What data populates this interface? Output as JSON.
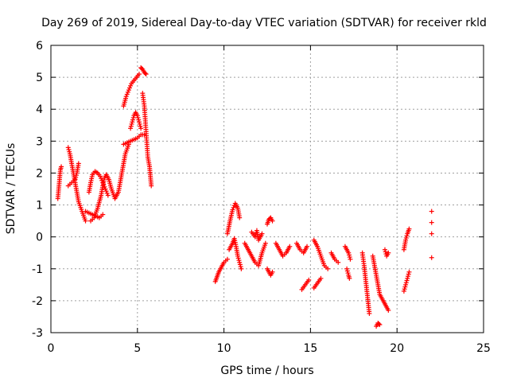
{
  "chart_data": {
    "type": "scatter",
    "title": "Day 269 of 2019, Sidereal Day-to-day VTEC variation (SDTVAR) for receiver rkld",
    "xlabel": "GPS time / hours",
    "ylabel": "SDTVAR / TECUs",
    "xlim": [
      0,
      25
    ],
    "ylim": [
      -3,
      6
    ],
    "xticks": [
      0,
      5,
      10,
      15,
      20,
      25
    ],
    "yticks": [
      -3,
      -2,
      -1,
      0,
      1,
      2,
      3,
      4,
      5,
      6
    ],
    "xtick_labels": [
      "0",
      "5",
      "10",
      "15",
      "20",
      "25"
    ],
    "ytick_labels": [
      "-3",
      "-2",
      "-1",
      "0",
      "1",
      "2",
      "3",
      "4",
      "5",
      "6"
    ],
    "grid": true,
    "marker": "+",
    "color": "#ff0000",
    "series": [
      {
        "name": "SDTVAR",
        "tracks": [
          [
            [
              0.4,
              1.2
            ],
            [
              0.45,
              1.5
            ],
            [
              0.5,
              1.8
            ],
            [
              0.55,
              2.1
            ],
            [
              0.6,
              2.2
            ]
          ],
          [
            [
              1.0,
              2.8
            ],
            [
              1.1,
              2.6
            ],
            [
              1.2,
              2.3
            ],
            [
              1.3,
              2.0
            ],
            [
              1.4,
              1.7
            ],
            [
              1.5,
              1.4
            ],
            [
              1.6,
              1.1
            ],
            [
              1.8,
              0.8
            ],
            [
              2.0,
              0.5
            ]
          ],
          [
            [
              1.0,
              1.6
            ],
            [
              1.2,
              1.7
            ],
            [
              1.4,
              1.8
            ],
            [
              1.5,
              2.0
            ],
            [
              1.6,
              2.3
            ]
          ],
          [
            [
              2.0,
              0.8
            ],
            [
              2.2,
              0.75
            ],
            [
              2.4,
              0.7
            ],
            [
              2.6,
              0.65
            ],
            [
              2.8,
              0.6
            ],
            [
              3.0,
              0.7
            ]
          ],
          [
            [
              2.2,
              1.4
            ],
            [
              2.3,
              1.7
            ],
            [
              2.4,
              1.95
            ],
            [
              2.55,
              2.05
            ],
            [
              2.7,
              2.0
            ],
            [
              2.85,
              1.9
            ],
            [
              3.0,
              1.7
            ],
            [
              3.15,
              1.5
            ],
            [
              3.3,
              1.3
            ]
          ],
          [
            [
              2.3,
              0.5
            ],
            [
              2.5,
              0.6
            ],
            [
              2.7,
              0.9
            ],
            [
              2.9,
              1.3
            ],
            [
              3.0,
              1.6
            ],
            [
              3.1,
              1.85
            ],
            [
              3.2,
              1.95
            ],
            [
              3.35,
              1.8
            ],
            [
              3.5,
              1.5
            ],
            [
              3.7,
              1.2
            ],
            [
              3.9,
              1.4
            ],
            [
              4.1,
              2.0
            ],
            [
              4.3,
              2.6
            ],
            [
              4.5,
              2.9
            ]
          ],
          [
            [
              4.2,
              4.1
            ],
            [
              4.35,
              4.4
            ],
            [
              4.5,
              4.6
            ],
            [
              4.65,
              4.8
            ],
            [
              4.8,
              4.9
            ],
            [
              4.95,
              5.0
            ],
            [
              5.1,
              5.1
            ]
          ],
          [
            [
              5.2,
              5.3
            ],
            [
              5.3,
              5.25
            ],
            [
              5.4,
              5.15
            ],
            [
              5.5,
              5.1
            ]
          ],
          [
            [
              4.6,
              3.4
            ],
            [
              4.7,
              3.6
            ],
            [
              4.8,
              3.8
            ],
            [
              4.9,
              3.9
            ],
            [
              5.0,
              3.8
            ],
            [
              5.1,
              3.6
            ],
            [
              5.2,
              3.4
            ]
          ],
          [
            [
              4.2,
              2.9
            ],
            [
              4.4,
              2.95
            ],
            [
              4.6,
              3.0
            ],
            [
              4.8,
              3.05
            ],
            [
              5.0,
              3.1
            ],
            [
              5.2,
              3.2
            ],
            [
              5.4,
              3.2
            ]
          ],
          [
            [
              5.3,
              4.5
            ],
            [
              5.4,
              4.1
            ],
            [
              5.45,
              3.7
            ],
            [
              5.5,
              3.3
            ],
            [
              5.55,
              2.9
            ],
            [
              5.6,
              2.5
            ],
            [
              5.7,
              2.2
            ],
            [
              5.75,
              1.9
            ],
            [
              5.8,
              1.6
            ]
          ],
          [
            [
              9.5,
              -1.4
            ],
            [
              9.6,
              -1.25
            ],
            [
              9.7,
              -1.1
            ],
            [
              9.8,
              -1.0
            ],
            [
              9.9,
              -0.9
            ],
            [
              10.0,
              -0.8
            ],
            [
              10.2,
              -0.7
            ]
          ],
          [
            [
              10.2,
              0.1
            ],
            [
              10.35,
              0.5
            ],
            [
              10.5,
              0.85
            ],
            [
              10.65,
              1.05
            ],
            [
              10.8,
              0.9
            ],
            [
              10.9,
              0.6
            ]
          ],
          [
            [
              10.3,
              -0.4
            ],
            [
              10.5,
              -0.2
            ],
            [
              10.6,
              -0.05
            ],
            [
              10.7,
              -0.3
            ],
            [
              10.8,
              -0.6
            ],
            [
              10.9,
              -0.8
            ],
            [
              11.0,
              -1.0
            ]
          ],
          [
            [
              11.2,
              -0.2
            ],
            [
              11.4,
              -0.4
            ],
            [
              11.6,
              -0.6
            ],
            [
              11.8,
              -0.8
            ],
            [
              12.0,
              -0.9
            ],
            [
              12.2,
              -0.5
            ],
            [
              12.4,
              -0.2
            ]
          ],
          [
            [
              11.6,
              0.15
            ],
            [
              11.8,
              0.0
            ],
            [
              11.9,
              0.2
            ],
            [
              12.0,
              -0.1
            ],
            [
              12.2,
              0.1
            ]
          ],
          [
            [
              12.5,
              -1.0
            ],
            [
              12.6,
              -1.1
            ],
            [
              12.7,
              -1.2
            ],
            [
              12.8,
              -1.1
            ]
          ],
          [
            [
              12.5,
              0.4
            ],
            [
              12.6,
              0.55
            ],
            [
              12.7,
              0.6
            ],
            [
              12.8,
              0.5
            ]
          ],
          [
            [
              13.0,
              -0.2
            ],
            [
              13.2,
              -0.4
            ],
            [
              13.4,
              -0.6
            ],
            [
              13.6,
              -0.5
            ],
            [
              13.8,
              -0.3
            ]
          ],
          [
            [
              14.2,
              -0.2
            ],
            [
              14.4,
              -0.4
            ],
            [
              14.6,
              -0.5
            ],
            [
              14.8,
              -0.3
            ]
          ],
          [
            [
              14.5,
              -1.65
            ],
            [
              14.7,
              -1.5
            ],
            [
              14.9,
              -1.35
            ]
          ],
          [
            [
              15.2,
              -1.6
            ],
            [
              15.4,
              -1.45
            ],
            [
              15.6,
              -1.3
            ]
          ],
          [
            [
              15.2,
              -0.1
            ],
            [
              15.4,
              -0.3
            ],
            [
              15.6,
              -0.6
            ],
            [
              15.8,
              -0.9
            ],
            [
              16.0,
              -1.0
            ]
          ],
          [
            [
              16.2,
              -0.5
            ],
            [
              16.4,
              -0.7
            ],
            [
              16.6,
              -0.8
            ]
          ],
          [
            [
              17.0,
              -0.3
            ],
            [
              17.2,
              -0.5
            ],
            [
              17.3,
              -0.7
            ]
          ],
          [
            [
              17.1,
              -1.0
            ],
            [
              17.2,
              -1.2
            ],
            [
              17.25,
              -1.3
            ]
          ],
          [
            [
              18.0,
              -0.5
            ],
            [
              18.1,
              -0.9
            ],
            [
              18.2,
              -1.4
            ],
            [
              18.3,
              -1.9
            ],
            [
              18.4,
              -2.4
            ]
          ],
          [
            [
              18.8,
              -2.8
            ],
            [
              18.9,
              -2.7
            ],
            [
              19.0,
              -2.75
            ]
          ],
          [
            [
              18.6,
              -0.6
            ],
            [
              18.8,
              -1.2
            ],
            [
              19.0,
              -1.8
            ],
            [
              19.2,
              -2.0
            ],
            [
              19.4,
              -2.2
            ],
            [
              19.5,
              -2.3
            ]
          ],
          [
            [
              19.3,
              -0.4
            ],
            [
              19.4,
              -0.6
            ],
            [
              19.5,
              -0.5
            ]
          ],
          [
            [
              20.4,
              -1.7
            ],
            [
              20.5,
              -1.5
            ],
            [
              20.6,
              -1.3
            ],
            [
              20.7,
              -1.1
            ]
          ],
          [
            [
              20.4,
              -0.4
            ],
            [
              20.5,
              -0.1
            ],
            [
              20.6,
              0.1
            ],
            [
              20.7,
              0.25
            ]
          ],
          [
            [
              22.0,
              0.8
            ],
            [
              22.0,
              0.45
            ],
            [
              22.0,
              0.1
            ],
            [
              22.0,
              -0.65
            ]
          ]
        ]
      }
    ]
  }
}
